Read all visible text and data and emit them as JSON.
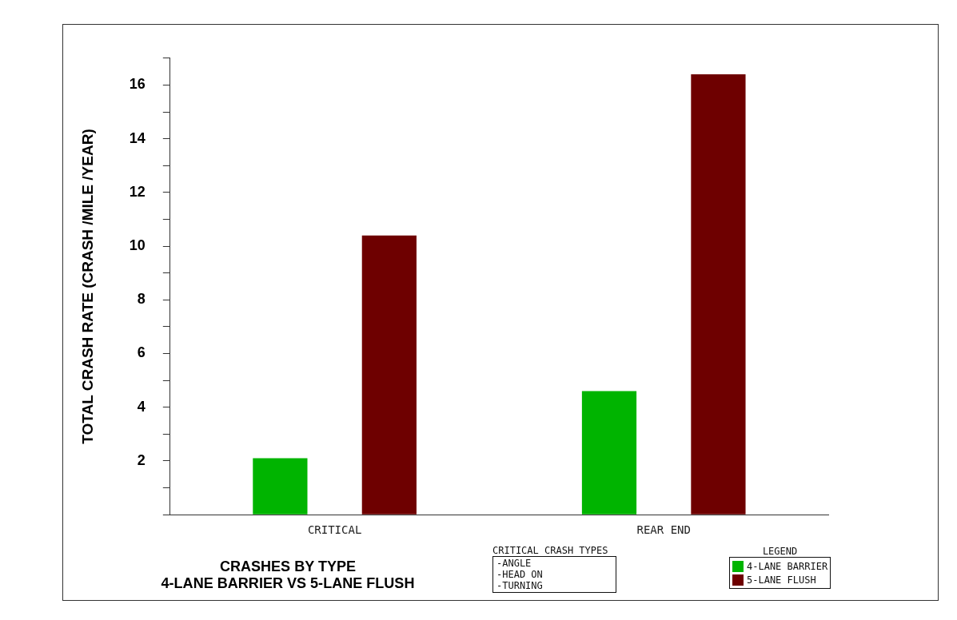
{
  "chart_data": {
    "type": "bar",
    "title": "CRASHES BY TYPE\n4-LANE BARRIER VS 5-LANE FLUSH",
    "ylabel": "TOTAL CRASH RATE (CRASH /MILE /YEAR)",
    "legend_title": "LEGEND",
    "categories": [
      "CRITICAL",
      "REAR END"
    ],
    "series": [
      {
        "name": "4-LANE BARRIER",
        "color": "#00b400",
        "values": [
          2.1,
          4.6
        ]
      },
      {
        "name": "5-LANE FLUSH",
        "color": "#6e0000",
        "values": [
          10.4,
          16.4
        ]
      }
    ],
    "ylim": [
      0,
      17
    ],
    "yticks": [
      {
        "value": 0,
        "label": null
      },
      {
        "value": 1,
        "label": null
      },
      2,
      {
        "value": 3,
        "label": null
      },
      4,
      {
        "value": 5,
        "label": null
      },
      6,
      {
        "value": 7,
        "label": null
      },
      8,
      {
        "value": 9,
        "label": null
      },
      10,
      {
        "value": 11,
        "label": null
      },
      12,
      {
        "value": 13,
        "label": null
      },
      14,
      {
        "value": 15,
        "label": null
      },
      16,
      {
        "value": 17,
        "label": null
      }
    ],
    "grid": false,
    "legend": "bottom right",
    "annotations": [
      "CRITICAL CRASH TYPES",
      "-ANGLE",
      "-HEAD ON",
      "-TURNING"
    ]
  }
}
